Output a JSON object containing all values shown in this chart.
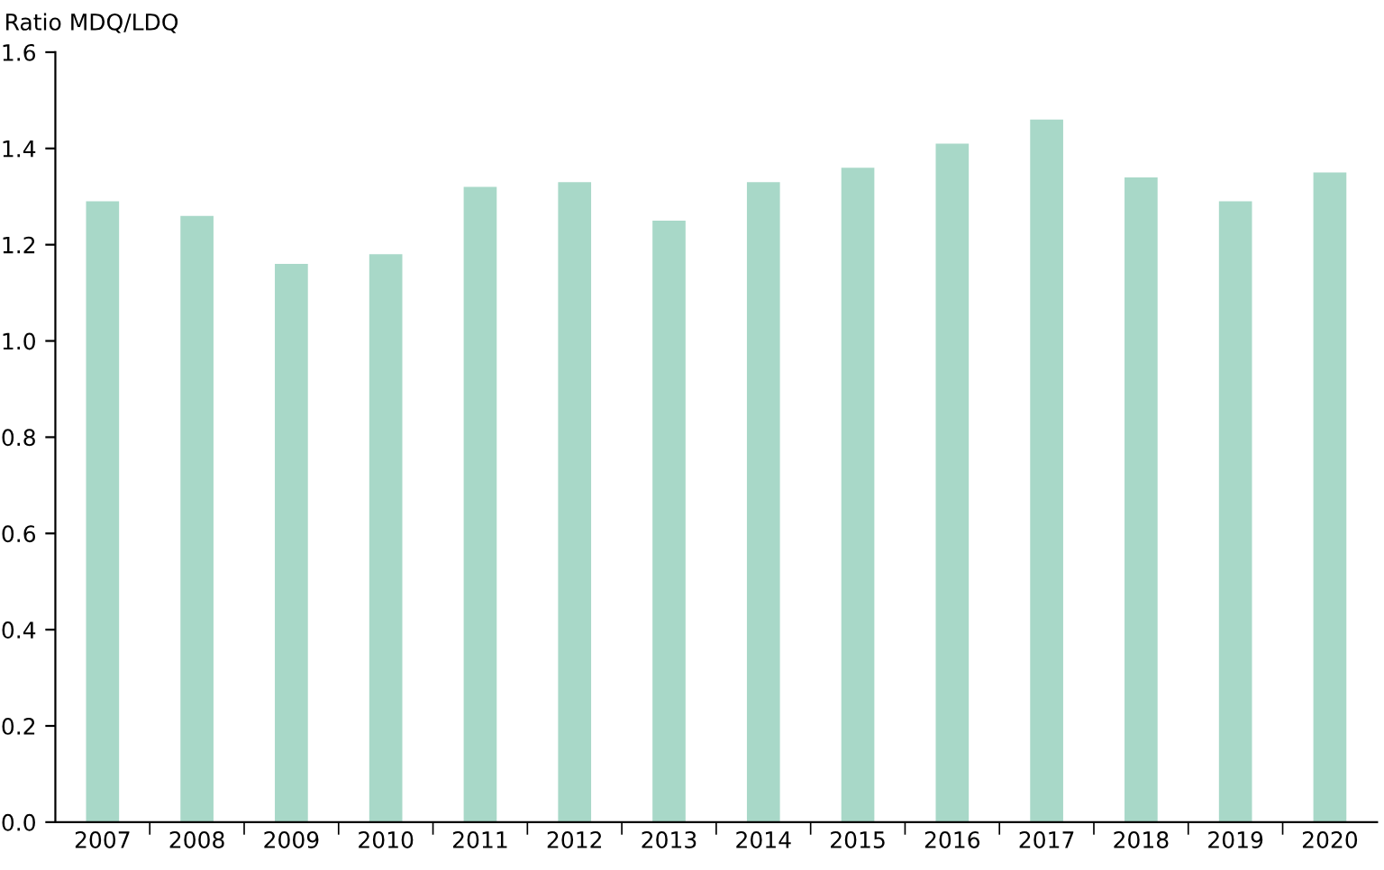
{
  "chart_data": {
    "type": "bar",
    "ylabel": "Ratio MDQ/LDQ",
    "categories": [
      "2007",
      "2008",
      "2009",
      "2010",
      "2011",
      "2012",
      "2013",
      "2014",
      "2015",
      "2016",
      "2017",
      "2018",
      "2019",
      "2020"
    ],
    "values": [
      1.29,
      1.26,
      1.16,
      1.18,
      1.32,
      1.33,
      1.25,
      1.33,
      1.36,
      1.41,
      1.46,
      1.34,
      1.29,
      1.35
    ],
    "color": "#a8d8c8",
    "ylim": [
      0,
      1.6
    ],
    "yticks": [
      {
        "value": 0,
        "label": "0.0"
      },
      {
        "value": 0.2,
        "label": "0.2"
      },
      {
        "value": 0.4,
        "label": "0.4"
      },
      {
        "value": 0.6,
        "label": "0.6"
      },
      {
        "value": 0.8,
        "label": "0.8"
      },
      {
        "value": 1.0,
        "label": "1.0"
      },
      {
        "value": 1.2,
        "label": "1.2"
      },
      {
        "value": 1.4,
        "label": "1.4"
      },
      {
        "value": 1.6,
        "label": "1.6"
      }
    ],
    "grid": false,
    "legend": false
  }
}
